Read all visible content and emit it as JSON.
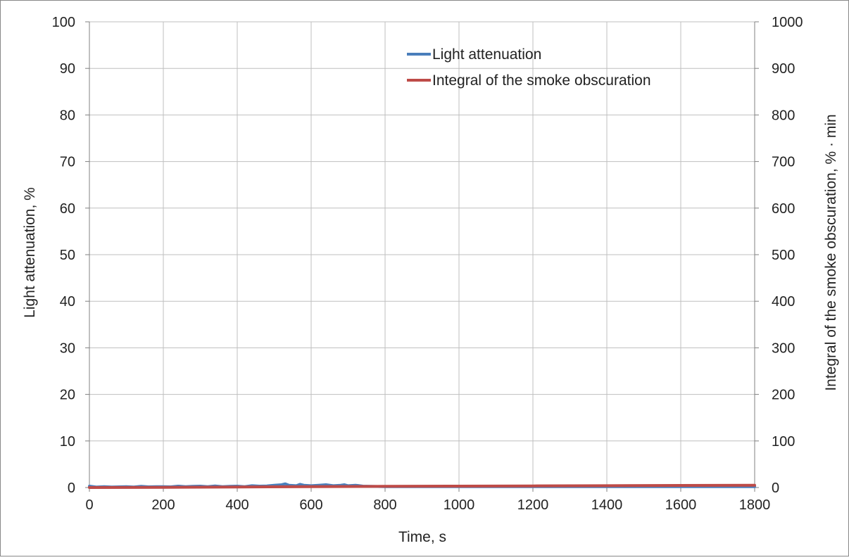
{
  "chart_data": {
    "type": "line",
    "title": "",
    "xlabel": "Time, s",
    "ylabel": "Light attenuation, %",
    "y2label": "Integral of the smoke obscuration, % · min",
    "xlim": [
      0,
      1800
    ],
    "ylim": [
      0,
      100
    ],
    "y2lim": [
      0,
      1000
    ],
    "x_ticks": [
      "0",
      "200",
      "400",
      "600",
      "800",
      "1000",
      "1200",
      "1400",
      "1600",
      "1800"
    ],
    "y_ticks": [
      "0",
      "10",
      "20",
      "30",
      "40",
      "50",
      "60",
      "70",
      "80",
      "90",
      "100"
    ],
    "y2_ticks": [
      "0",
      "100",
      "200",
      "300",
      "400",
      "500",
      "600",
      "700",
      "800",
      "900",
      "1000"
    ],
    "grid": true,
    "legend_position": "top-right",
    "series": [
      {
        "name": "Light attenuation",
        "axis": "left",
        "color": "#4a7ebb",
        "x": [
          0,
          20,
          40,
          60,
          80,
          100,
          120,
          140,
          160,
          180,
          200,
          220,
          240,
          260,
          280,
          300,
          320,
          340,
          360,
          380,
          400,
          420,
          440,
          460,
          480,
          500,
          520,
          530,
          540,
          560,
          570,
          580,
          600,
          620,
          640,
          660,
          680,
          690,
          700,
          720,
          740,
          760,
          800,
          900,
          1000,
          1100,
          1200,
          1300,
          1400,
          1500,
          1600,
          1700,
          1800
        ],
        "y": [
          0.3,
          0.1,
          0.2,
          0.1,
          0.15,
          0.2,
          0.1,
          0.25,
          0.15,
          0.2,
          0.2,
          0.15,
          0.3,
          0.2,
          0.25,
          0.3,
          0.2,
          0.35,
          0.2,
          0.25,
          0.3,
          0.2,
          0.4,
          0.3,
          0.35,
          0.5,
          0.6,
          0.8,
          0.5,
          0.4,
          0.7,
          0.5,
          0.4,
          0.5,
          0.6,
          0.4,
          0.5,
          0.6,
          0.4,
          0.5,
          0.3,
          0.25,
          0.2,
          0.2,
          0.2,
          0.2,
          0.2,
          0.2,
          0.2,
          0.2,
          0.2,
          0.2,
          0.2
        ]
      },
      {
        "name": "Integral of the smoke obscuration",
        "axis": "right",
        "color": "#be4b48",
        "x": [
          0,
          200,
          400,
          600,
          800,
          1000,
          1200,
          1400,
          1600,
          1800
        ],
        "y": [
          0,
          0.5,
          1.2,
          2,
          2.5,
          3,
          3.5,
          4,
          4.5,
          5
        ]
      }
    ]
  }
}
